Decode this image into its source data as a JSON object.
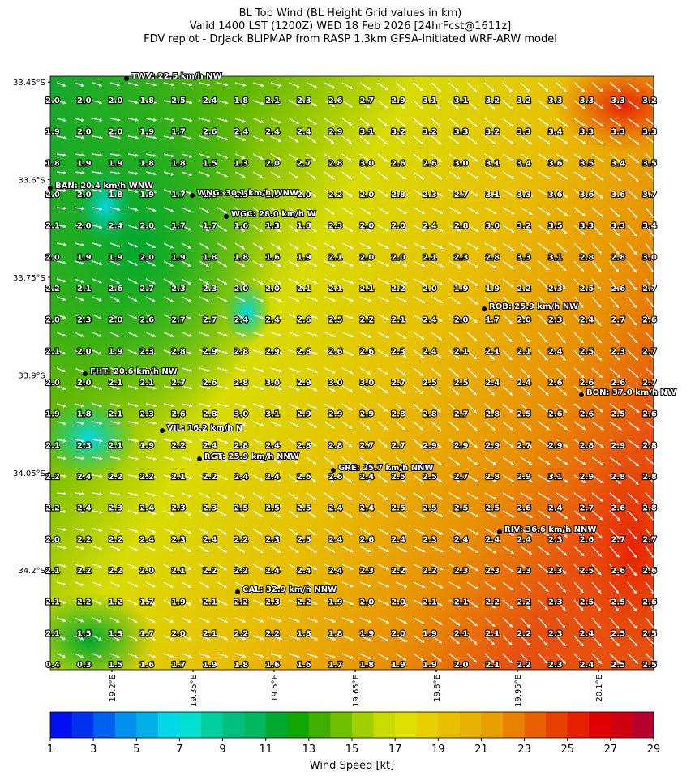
{
  "chart_data": {
    "type": "heatmap",
    "title": "BL Top Wind (BL Height Grid values in km)",
    "subtitle": "Valid 1400 LST (1200Z) WED 18 Feb 2026 [24hrFcst@1611z]",
    "subtitle2": "FDV replot - DrJack BLIPMAP from RASP 1.3km GFSA-Initiated WRF-ARW model",
    "xlim": [
      19.086,
      20.202
    ],
    "ylim": [
      -34.353,
      -33.441
    ],
    "xticks": [
      {
        "value": 19.2,
        "label": "19.2°E"
      },
      {
        "value": 19.35,
        "label": "19.35°E"
      },
      {
        "value": 19.5,
        "label": "19.5°E"
      },
      {
        "value": 19.65,
        "label": "19.65°E"
      },
      {
        "value": 19.8,
        "label": "19.8°E"
      },
      {
        "value": 19.95,
        "label": "19.95°E"
      },
      {
        "value": 20.1,
        "label": "20.1°E"
      }
    ],
    "yticks": [
      {
        "value": -33.45,
        "label": "33.45°S"
      },
      {
        "value": -33.6,
        "label": "33.6°S"
      },
      {
        "value": -33.75,
        "label": "33.75°S"
      },
      {
        "value": -33.9,
        "label": "33.9°S"
      },
      {
        "value": -34.05,
        "label": "34.05°S"
      },
      {
        "value": -34.2,
        "label": "34.2°S"
      }
    ],
    "grid_values": [
      [
        "2.0",
        "2.0",
        "2.0",
        "1.8",
        "2.5",
        "2.4",
        "1.8",
        "2.1",
        "2.3",
        "2.6",
        "2.7",
        "2.9",
        "3.1",
        "3.1",
        "3.2",
        "3.2",
        "3.3",
        "3.3",
        "3.3",
        "3.2"
      ],
      [
        "1.9",
        "2.0",
        "2.0",
        "1.9",
        "1.7",
        "2.6",
        "2.4",
        "2.4",
        "2.4",
        "2.9",
        "3.1",
        "3.2",
        "3.2",
        "3.3",
        "3.2",
        "3.3",
        "3.4",
        "3.3",
        "3.3",
        "3.3"
      ],
      [
        "1.8",
        "1.9",
        "1.9",
        "1.8",
        "1.8",
        "1.5",
        "1.3",
        "2.0",
        "2.7",
        "2.8",
        "3.0",
        "2.6",
        "2.6",
        "3.0",
        "3.1",
        "3.4",
        "3.6",
        "3.5",
        "3.4",
        "3.5"
      ],
      [
        "2.0",
        "2.0",
        "1.8",
        "1.9",
        "1.7",
        "1.6",
        "1.5",
        "1.6",
        "2.0",
        "2.2",
        "2.0",
        "2.8",
        "2.3",
        "2.7",
        "3.1",
        "3.3",
        "3.6",
        "3.6",
        "3.6",
        "3.7"
      ],
      [
        "2.1",
        "2.0",
        "2.4",
        "2.0",
        "1.7",
        "1.7",
        "1.6",
        "1.3",
        "1.8",
        "2.3",
        "2.0",
        "2.0",
        "2.4",
        "2.8",
        "3.0",
        "3.2",
        "3.5",
        "3.3",
        "3.3",
        "3.4"
      ],
      [
        "2.0",
        "1.9",
        "1.9",
        "2.0",
        "1.9",
        "1.8",
        "1.8",
        "1.6",
        "1.9",
        "2.1",
        "2.0",
        "2.0",
        "2.1",
        "2.3",
        "2.8",
        "3.3",
        "3.1",
        "2.8",
        "2.8",
        "3.0"
      ],
      [
        "2.2",
        "2.1",
        "2.6",
        "2.7",
        "2.3",
        "2.3",
        "2.0",
        "2.0",
        "2.1",
        "2.1",
        "2.1",
        "2.2",
        "2.0",
        "1.9",
        "1.9",
        "2.2",
        "2.3",
        "2.5",
        "2.6",
        "2.7"
      ],
      [
        "2.0",
        "2.3",
        "2.0",
        "2.6",
        "2.7",
        "2.7",
        "2.4",
        "2.4",
        "2.6",
        "2.5",
        "2.2",
        "2.1",
        "2.4",
        "2.0",
        "1.7",
        "2.0",
        "2.3",
        "2.4",
        "2.7",
        "2.6"
      ],
      [
        "2.1",
        "2.0",
        "1.9",
        "2.3",
        "2.8",
        "2.9",
        "2.8",
        "2.9",
        "2.8",
        "2.6",
        "2.6",
        "2.3",
        "2.4",
        "2.1",
        "2.1",
        "2.1",
        "2.4",
        "2.5",
        "2.3",
        "2.7"
      ],
      [
        "2.0",
        "2.0",
        "2.1",
        "2.1",
        "2.7",
        "2.6",
        "2.8",
        "3.0",
        "2.9",
        "3.0",
        "3.0",
        "2.7",
        "2.5",
        "2.5",
        "2.4",
        "2.4",
        "2.6",
        "2.6",
        "2.6",
        "2.7"
      ],
      [
        "1.9",
        "1.8",
        "2.1",
        "2.3",
        "2.6",
        "2.8",
        "3.0",
        "3.1",
        "2.9",
        "2.9",
        "2.9",
        "2.8",
        "2.8",
        "2.7",
        "2.8",
        "2.5",
        "2.6",
        "2.6",
        "2.5",
        "2.6"
      ],
      [
        "2.1",
        "2.3",
        "2.1",
        "1.9",
        "2.2",
        "2.4",
        "2.8",
        "2.4",
        "2.8",
        "2.8",
        "2.7",
        "2.7",
        "2.9",
        "2.9",
        "2.9",
        "2.7",
        "2.9",
        "2.8",
        "2.9",
        "2.8"
      ],
      [
        "2.2",
        "2.4",
        "2.2",
        "2.2",
        "2.1",
        "2.2",
        "2.4",
        "2.4",
        "2.6",
        "2.6",
        "2.4",
        "2.5",
        "2.5",
        "2.7",
        "2.8",
        "2.9",
        "3.1",
        "2.9",
        "2.8",
        "2.8"
      ],
      [
        "2.2",
        "2.4",
        "2.3",
        "2.4",
        "2.3",
        "2.3",
        "2.5",
        "2.5",
        "2.5",
        "2.4",
        "2.4",
        "2.5",
        "2.5",
        "2.5",
        "2.5",
        "2.6",
        "2.4",
        "2.7",
        "2.6",
        "2.8"
      ],
      [
        "2.0",
        "2.2",
        "2.2",
        "2.4",
        "2.3",
        "2.4",
        "2.2",
        "2.3",
        "2.5",
        "2.4",
        "2.6",
        "2.4",
        "2.3",
        "2.4",
        "2.4",
        "2.4",
        "2.3",
        "2.6",
        "2.7",
        "2.7"
      ],
      [
        "2.1",
        "2.2",
        "2.2",
        "2.0",
        "2.1",
        "2.2",
        "2.2",
        "2.4",
        "2.4",
        "2.4",
        "2.3",
        "2.2",
        "2.2",
        "2.3",
        "2.3",
        "2.3",
        "2.3",
        "2.5",
        "2.6",
        "2.6"
      ],
      [
        "2.1",
        "2.2",
        "1.2",
        "1.7",
        "1.9",
        "2.1",
        "2.2",
        "2.3",
        "2.2",
        "1.9",
        "2.0",
        "2.0",
        "2.1",
        "2.1",
        "2.2",
        "2.2",
        "2.3",
        "2.5",
        "2.5",
        "2.6"
      ],
      [
        "2.1",
        "1.5",
        "1.3",
        "1.7",
        "2.0",
        "2.1",
        "2.2",
        "2.2",
        "1.8",
        "1.8",
        "1.9",
        "2.0",
        "1.9",
        "2.1",
        "2.1",
        "2.2",
        "2.3",
        "2.4",
        "2.5",
        "2.5"
      ],
      [
        "0.4",
        "0.3",
        "1.5",
        "1.6",
        "1.7",
        "1.9",
        "1.8",
        "1.6",
        "1.6",
        "1.7",
        "1.8",
        "1.9",
        "1.9",
        "2.0",
        "2.1",
        "2.2",
        "2.3",
        "2.4",
        "2.5",
        "2.5"
      ]
    ],
    "stations": [
      {
        "label": "TWV: 22.5 km/h NW"
      },
      {
        "label": "BAN: 20.4 km/h WNW"
      },
      {
        "label": "WNG: 30.1 km/h WNW"
      },
      {
        "label": "WGC: 28.0 km/h W"
      },
      {
        "label": "ROB: 25.9 km/h NW"
      },
      {
        "label": "FHT: 20.6 km/h NW"
      },
      {
        "label": "BON: 37.0 km/h NW"
      },
      {
        "label": "VIL: 16.2 km/h N"
      },
      {
        "label": "RGT: 25.9 km/h NNW"
      },
      {
        "label": "GRE: 25.7 km/h NNW"
      },
      {
        "label": "RIV: 36.6 km/h NNW"
      },
      {
        "label": "CAL: 32.9 km/h NNW"
      }
    ],
    "colorbar": {
      "label": "Wind Speed [kt]",
      "lim": [
        1,
        29
      ],
      "ticks": [
        1,
        3,
        5,
        7,
        9,
        11,
        13,
        15,
        17,
        19,
        21,
        23,
        25,
        27,
        29
      ],
      "colors": [
        "#0010f0",
        "#0030f0",
        "#0060f0",
        "#0090f0",
        "#00b0e8",
        "#00d8e8",
        "#00e0d0",
        "#00d0a0",
        "#00c080",
        "#00b860",
        "#00aa30",
        "#10a800",
        "#40b000",
        "#70c000",
        "#a0d000",
        "#c8dc00",
        "#e0e000",
        "#e8d000",
        "#e8c000",
        "#e8b000",
        "#e8a000",
        "#e88000",
        "#e86000",
        "#e84000",
        "#e82000",
        "#e00000",
        "#d00010",
        "#b80030"
      ]
    }
  }
}
